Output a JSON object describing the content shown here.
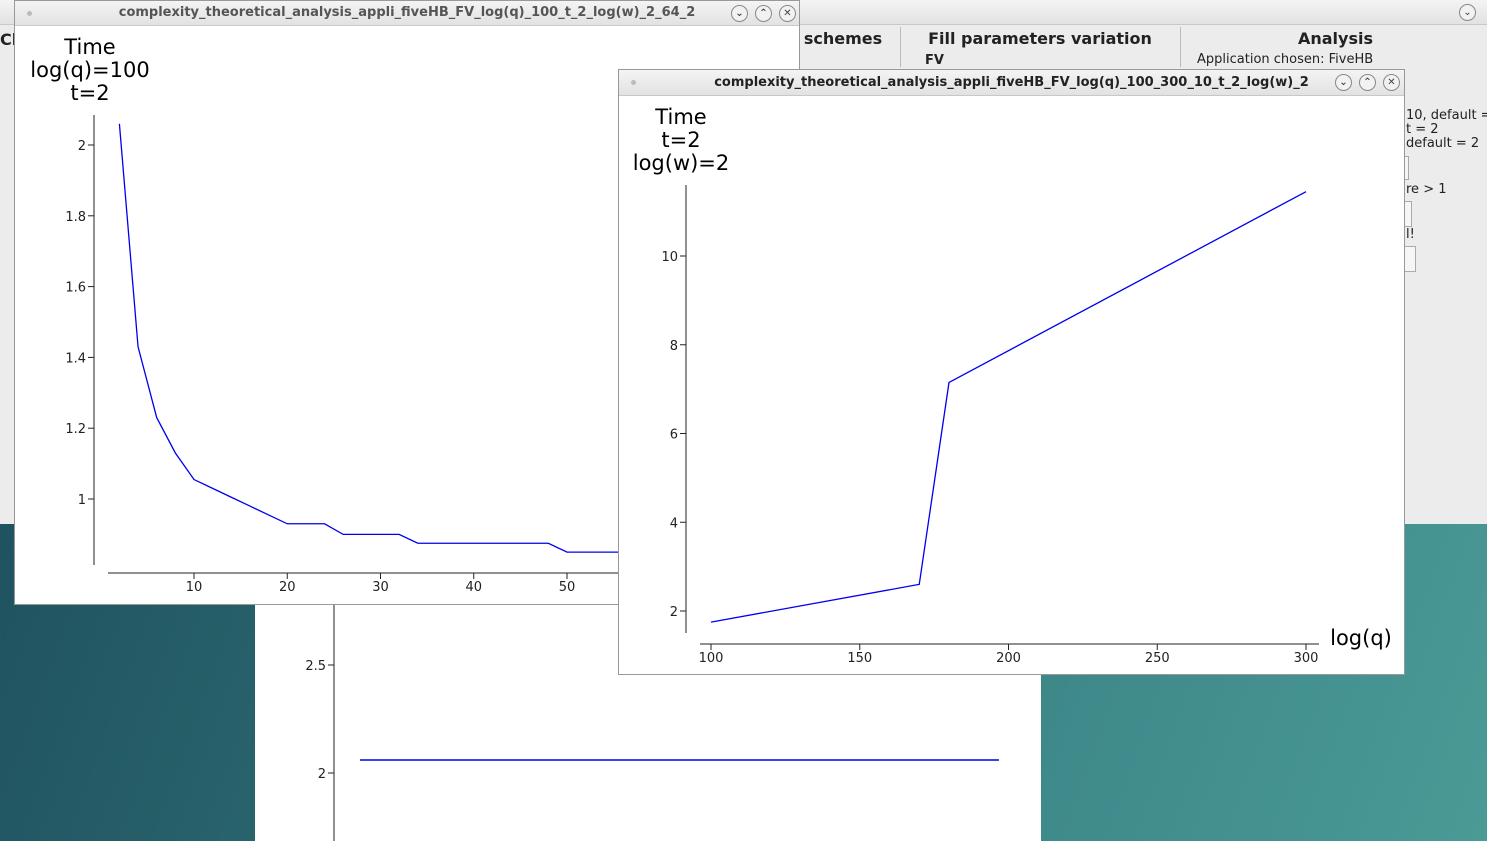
{
  "main_window": {
    "left_fragment": "Ch",
    "tabs": [
      "schemes",
      "Fill parameters variation",
      "Analysis"
    ],
    "fv_label": "FV",
    "application_text": "Application chosen: FiveHB",
    "fragments": [
      "10, default =",
      "t = 2",
      "default = 2",
      "re > 1",
      "l!"
    ]
  },
  "back_plot": {
    "y_ticks": [
      "2.5",
      "2"
    ]
  },
  "plot1": {
    "title": "complexity_theoretical_analysis_appli_fiveHB_FV_log(q)_100_t_2_log(w)_2_64_2",
    "label_lines": [
      "Time",
      "log(q)=100",
      "t=2"
    ],
    "chart_data": {
      "type": "line",
      "x": [
        2,
        4,
        6,
        8,
        10,
        12,
        14,
        16,
        18,
        20,
        22,
        24,
        26,
        28,
        30,
        32,
        34,
        36,
        38,
        40,
        42,
        44,
        46,
        48,
        50,
        52,
        54,
        56
      ],
      "y": [
        2.06,
        1.43,
        1.23,
        1.13,
        1.055,
        1.03,
        1.005,
        0.98,
        0.955,
        0.93,
        0.93,
        0.93,
        0.9,
        0.9,
        0.9,
        0.9,
        0.875,
        0.875,
        0.875,
        0.875,
        0.875,
        0.875,
        0.875,
        0.875,
        0.85,
        0.85,
        0.85,
        0.85
      ],
      "x_ticks": [
        10,
        20,
        30,
        40,
        50
      ],
      "y_ticks": [
        1,
        1.2,
        1.4,
        1.6,
        1.8,
        2
      ],
      "color": "#0000ee"
    }
  },
  "plot2": {
    "title": "complexity_theoretical_analysis_appli_fiveHB_FV_log(q)_100_300_10_t_2_log(w)_2",
    "label_lines": [
      "Time",
      "t=2",
      "log(w)=2"
    ],
    "chart_data": {
      "type": "line",
      "x": [
        100,
        170,
        180,
        300
      ],
      "y": [
        1.75,
        2.6,
        7.15,
        11.45
      ],
      "x_ticks": [
        100,
        150,
        200,
        250,
        300
      ],
      "y_ticks": [
        2,
        4,
        6,
        8,
        10
      ],
      "xlabel": "log(q)",
      "color": "#0000ee"
    }
  }
}
